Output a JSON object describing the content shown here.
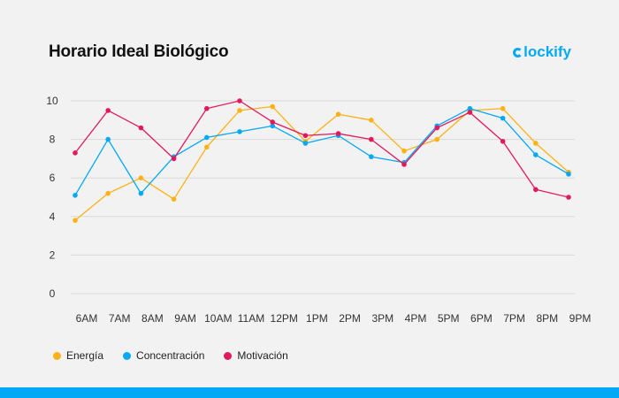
{
  "header": {
    "title": "Horario Ideal Biológico",
    "brand": "lockify",
    "brand_icon": "clockify-c-icon",
    "brand_color": "#03a9f4"
  },
  "chart_data": {
    "type": "line",
    "title": "Horario Ideal Biológico",
    "xlabel": "",
    "ylabel": "",
    "categories": [
      "6AM",
      "7AM",
      "8AM",
      "9AM",
      "10AM",
      "11AM",
      "12PM",
      "1PM",
      "2PM",
      "3PM",
      "4PM",
      "5PM",
      "6PM",
      "7PM",
      "8PM",
      "9PM"
    ],
    "yticks": [
      0,
      2,
      4,
      6,
      8,
      10
    ],
    "ylim": [
      0,
      10
    ],
    "grid": true,
    "legend_position": "bottom-left",
    "series": [
      {
        "name": "Energía",
        "color": "#fbb216",
        "values": [
          3.8,
          5.2,
          6.0,
          4.9,
          7.6,
          9.5,
          9.7,
          7.9,
          9.3,
          9.0,
          7.4,
          8.0,
          9.5,
          9.6,
          7.8,
          6.3
        ]
      },
      {
        "name": "Concentración",
        "color": "#03a9f4",
        "values": [
          5.1,
          8.0,
          5.2,
          7.1,
          8.1,
          8.4,
          8.7,
          7.8,
          8.2,
          7.1,
          6.8,
          8.7,
          9.6,
          9.1,
          7.2,
          6.2
        ]
      },
      {
        "name": "Motivación",
        "color": "#e2195b",
        "values": [
          7.3,
          9.5,
          8.6,
          7.0,
          9.6,
          10.0,
          8.9,
          8.2,
          8.3,
          8.0,
          6.7,
          8.6,
          9.4,
          7.9,
          5.4,
          5.0
        ]
      }
    ]
  },
  "legend": [
    {
      "label": "Energía",
      "color": "#fbb216"
    },
    {
      "label": "Concentración",
      "color": "#03a9f4"
    },
    {
      "label": "Motivación",
      "color": "#e2195b"
    }
  ]
}
